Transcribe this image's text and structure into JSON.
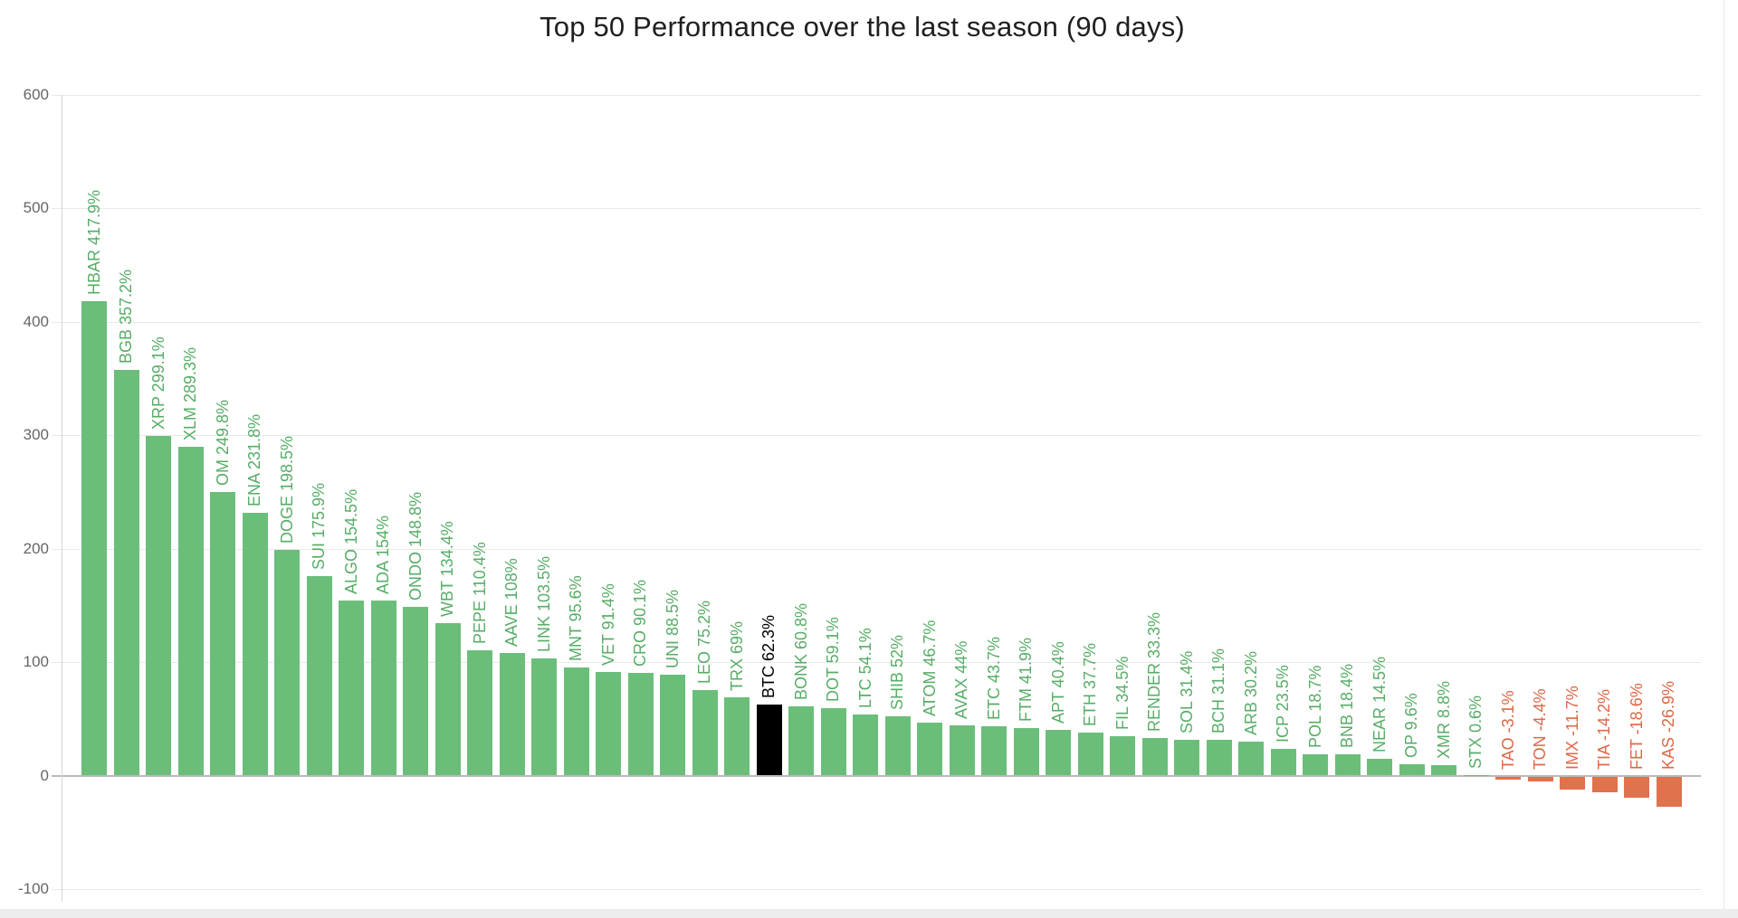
{
  "chart_data": {
    "type": "bar",
    "title": "Top 50 Performance over the last season (90 days)",
    "categories": [
      "HBAR",
      "BGB",
      "XRP",
      "XLM",
      "OM",
      "ENA",
      "DOGE",
      "SUI",
      "ALGO",
      "ADA",
      "ONDO",
      "WBT",
      "PEPE",
      "AAVE",
      "LINK",
      "MNT",
      "VET",
      "CRO",
      "UNI",
      "LEO",
      "TRX",
      "BTC",
      "BONK",
      "DOT",
      "LTC",
      "SHIB",
      "ATOM",
      "AVAX",
      "ETC",
      "FTM",
      "APT",
      "ETH",
      "FIL",
      "RENDER",
      "SOL",
      "BCH",
      "ARB",
      "ICP",
      "POL",
      "BNB",
      "NEAR",
      "OP",
      "XMR",
      "STX",
      "TAO",
      "TON",
      "IMX",
      "TIA",
      "FET",
      "KAS"
    ],
    "values": [
      417.9,
      357.2,
      299.1,
      289.3,
      249.8,
      231.8,
      198.5,
      175.9,
      154.5,
      154,
      148.8,
      134.4,
      110.4,
      108,
      103.5,
      95.6,
      91.4,
      90.1,
      88.5,
      75.2,
      69,
      62.3,
      60.8,
      59.1,
      54.1,
      52,
      46.7,
      44,
      43.7,
      41.9,
      40.4,
      37.7,
      34.5,
      33.3,
      31.4,
      31.1,
      30.2,
      23.5,
      18.7,
      18.4,
      14.5,
      9.6,
      8.8,
      0.6,
      -3.1,
      -4.4,
      -11.7,
      -14.2,
      -18.6,
      -26.9
    ],
    "value_suffix": "%",
    "highlight_category": "BTC",
    "xlabel": "",
    "ylabel": "",
    "yticks": [
      600,
      500,
      400,
      300,
      200,
      100,
      0,
      -100
    ],
    "ylim": [
      -100,
      600
    ],
    "grid": true,
    "legend": false,
    "colors": {
      "positive_bar": "#6abe7a",
      "positive_label": "#57ad66",
      "negative_bar": "#e0724d",
      "negative_label": "#dd6847",
      "highlight_bar": "#000000",
      "highlight_label": "#000000",
      "gridline": "#e9e9e9",
      "zero_line": "#b9b9b9",
      "axis_line": "#d6d6d6",
      "tick_text": "#666666",
      "title_text": "#1f1f1f"
    }
  }
}
